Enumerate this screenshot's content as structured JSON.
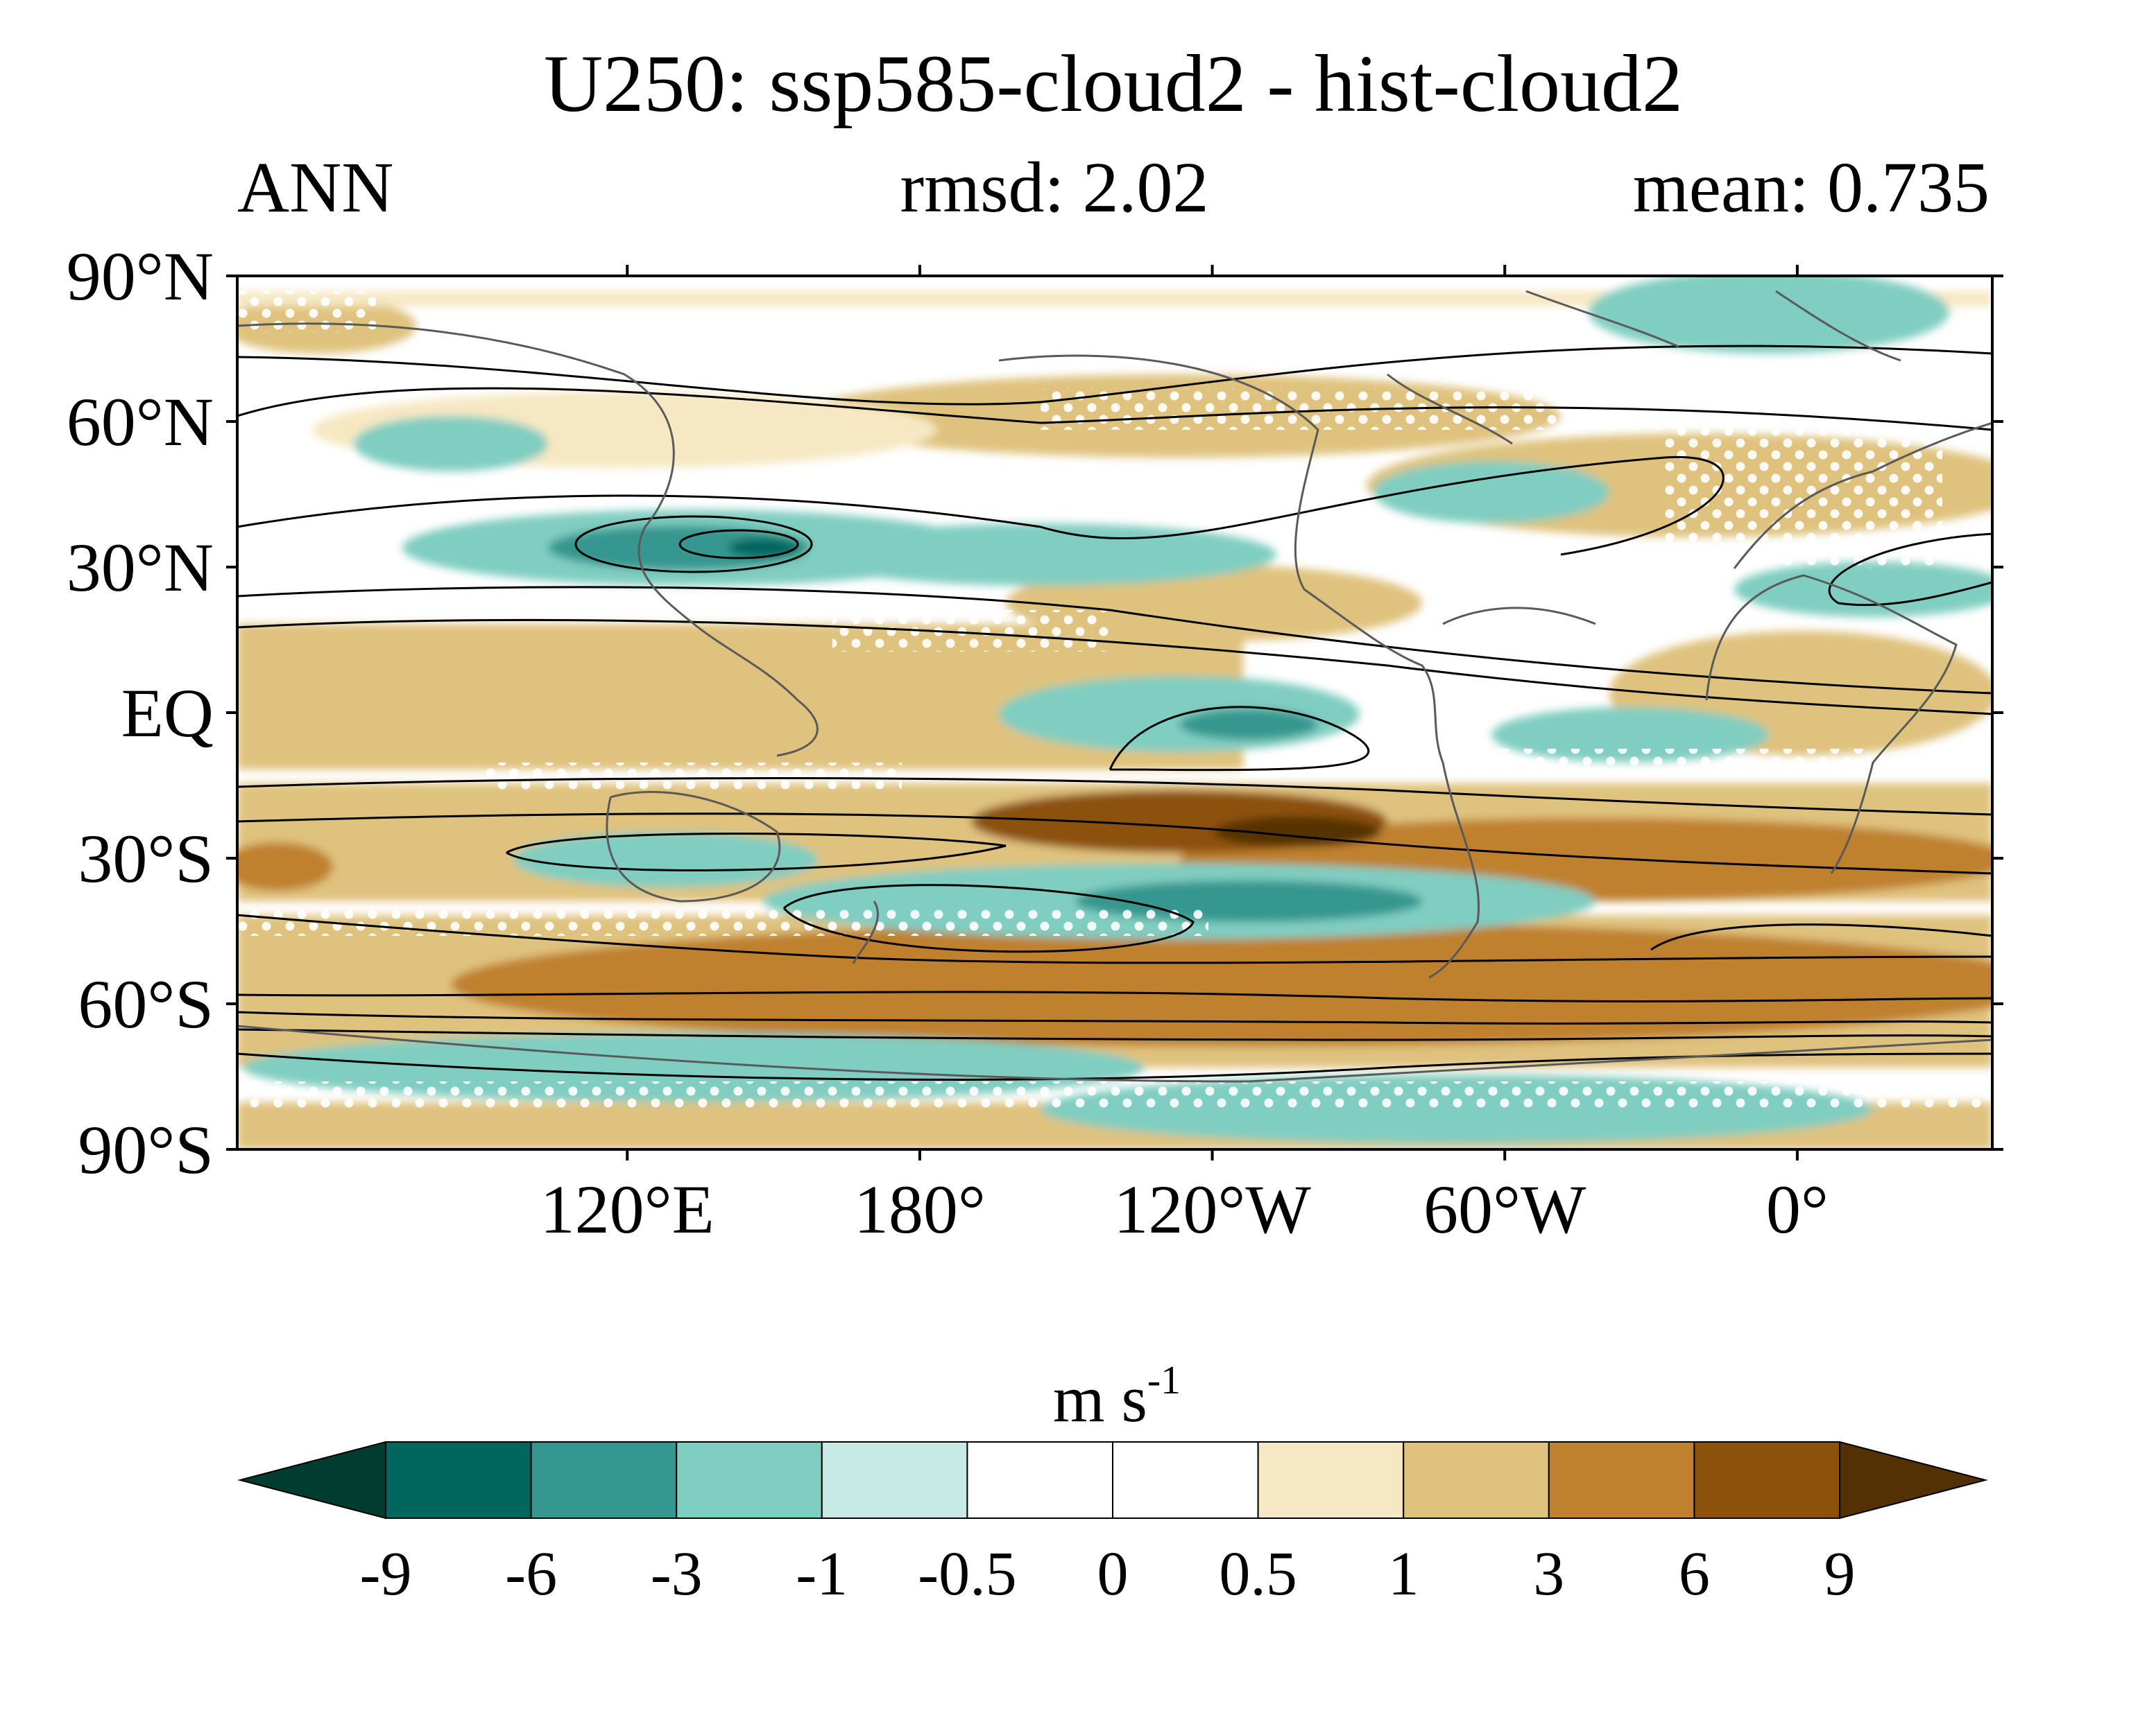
{
  "title": "U250: ssp585-cloud2 - hist-cloud2",
  "subtitle": {
    "left": "ANN",
    "center": "rmsd: 2.02",
    "right": "mean: 0.735"
  },
  "map": {
    "lat_labels": [
      "90°N",
      "60°N",
      "30°N",
      "EQ",
      "30°S",
      "60°S",
      "90°S"
    ],
    "lat_values": [
      90,
      60,
      30,
      0,
      -30,
      -60,
      -90
    ],
    "lon_labels": [
      "120°E",
      "180°",
      "120°W",
      "60°W",
      "0°"
    ],
    "lon_values": [
      120,
      180,
      240,
      300,
      360
    ],
    "lon_range": [
      40,
      400
    ],
    "lat_range": [
      -90,
      90
    ]
  },
  "colorbar": {
    "unit_base": "m s",
    "unit_exponent": "-1",
    "levels": [
      "-9",
      "-6",
      "-3",
      "-1",
      "-0.5",
      "0",
      "0.5",
      "1",
      "3",
      "6",
      "9"
    ],
    "colors": [
      "#003c30",
      "#01665e",
      "#35978f",
      "#80cdc1",
      "#c7eae5",
      "#ffffff",
      "#ffffff",
      "#f6e8c3",
      "#dfc27d",
      "#bf812d",
      "#8c510a",
      "#543005"
    ]
  }
}
